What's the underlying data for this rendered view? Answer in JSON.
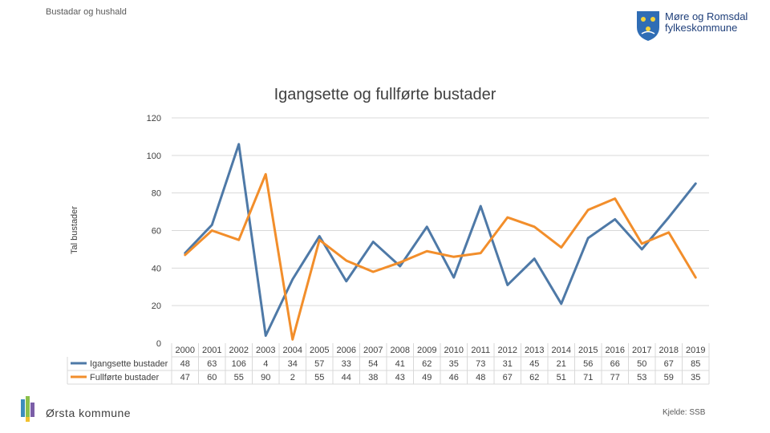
{
  "header": {
    "label": "Bustadar og hushald"
  },
  "logo": {
    "line1": "Møre og Romsdal",
    "line2": "fylkeskommune"
  },
  "footer": {
    "municipality": "Ørsta kommune",
    "source": "Kjelde: SSB"
  },
  "colors": {
    "series1": "#4e79a7",
    "series2": "#f28e2b",
    "grid": "#d9d9d9"
  },
  "chart_data": {
    "type": "line",
    "title": "Igangsette og fullførte bustader",
    "xlabel": "",
    "ylabel": "Tal bustader",
    "ylim": [
      0,
      120
    ],
    "yticks": [
      0,
      20,
      40,
      60,
      80,
      100,
      120
    ],
    "grid": true,
    "legend": "bottom-table",
    "categories": [
      "2000",
      "2001",
      "2002",
      "2003",
      "2004",
      "2005",
      "2006",
      "2007",
      "2008",
      "2009",
      "2010",
      "2011",
      "2012",
      "2013",
      "2014",
      "2015",
      "2016",
      "2017",
      "2018",
      "2019"
    ],
    "series": [
      {
        "name": "Igangsette bustader",
        "values": [
          48,
          63,
          106,
          4,
          34,
          57,
          33,
          54,
          41,
          62,
          35,
          73,
          31,
          45,
          21,
          56,
          66,
          50,
          67,
          85
        ]
      },
      {
        "name": "Fullførte bustader",
        "values": [
          47,
          60,
          55,
          90,
          2,
          55,
          44,
          38,
          43,
          49,
          46,
          48,
          67,
          62,
          51,
          71,
          77,
          53,
          59,
          35
        ]
      }
    ]
  }
}
